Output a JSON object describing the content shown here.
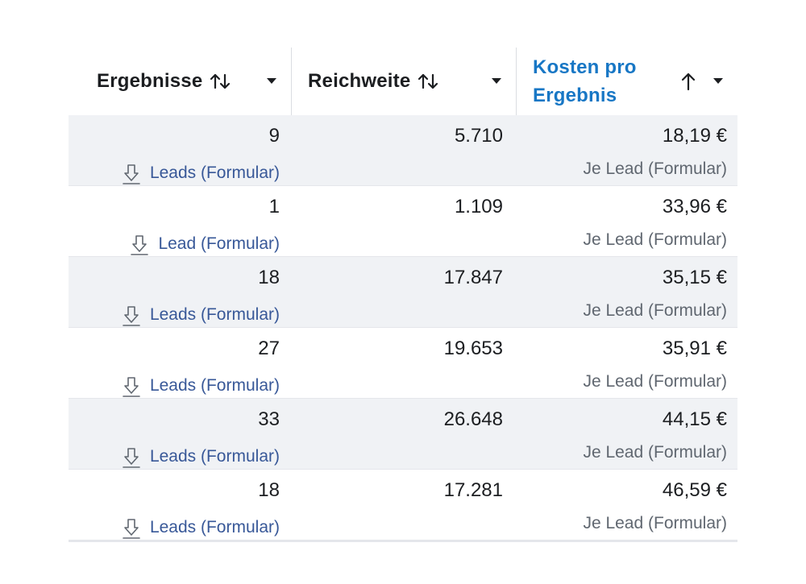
{
  "columns": {
    "results": {
      "label": "Ergebnisse"
    },
    "reach": {
      "label": "Reichweite"
    },
    "cost": {
      "label": "Kosten pro Ergebnis"
    }
  },
  "rows": [
    {
      "results": "9",
      "results_type": "Leads (Formular)",
      "reach": "5.710",
      "cost": "18,19 €",
      "cost_type": "Je Lead (Formular)"
    },
    {
      "results": "1",
      "results_type": "Lead (Formular)",
      "reach": "1.109",
      "cost": "33,96 €",
      "cost_type": "Je Lead (Formular)"
    },
    {
      "results": "18",
      "results_type": "Leads (Formular)",
      "reach": "17.847",
      "cost": "35,15 €",
      "cost_type": "Je Lead (Formular)"
    },
    {
      "results": "27",
      "results_type": "Leads (Formular)",
      "reach": "19.653",
      "cost": "35,91 €",
      "cost_type": "Je Lead (Formular)"
    },
    {
      "results": "33",
      "results_type": "Leads (Formular)",
      "reach": "26.648",
      "cost": "44,15 €",
      "cost_type": "Je Lead (Formular)"
    },
    {
      "results": "18",
      "results_type": "Leads (Formular)",
      "reach": "17.281",
      "cost": "46,59 €",
      "cost_type": "Je Lead (Formular)"
    }
  ],
  "icons": {
    "sort_both": "sort-both-icon",
    "sort_asc": "sort-ascending-icon",
    "caret": "caret-down-icon",
    "lead": "download-icon"
  },
  "colors": {
    "active_header": "#1877c5",
    "link": "#385898",
    "shaded_row": "#f0f2f5"
  }
}
